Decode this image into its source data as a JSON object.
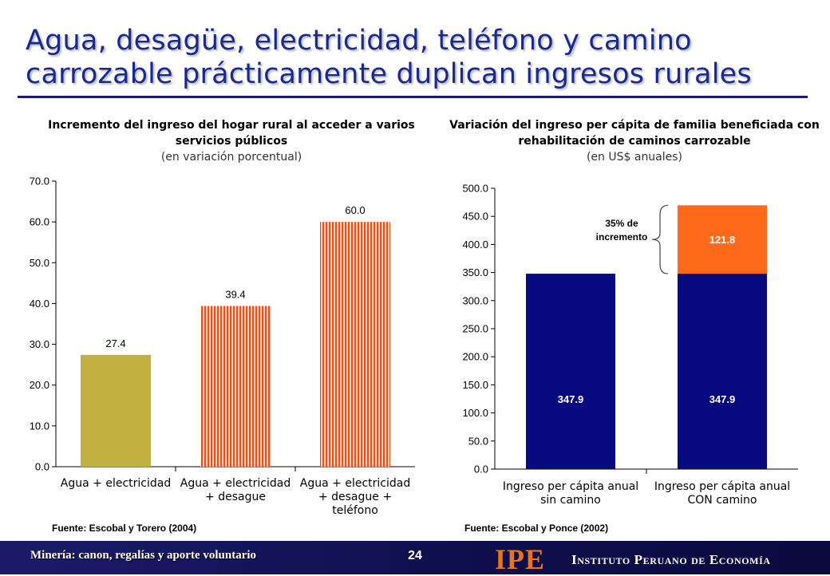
{
  "title": "Agua, desagüe, electricidad, teléfono y camino carrozable prácticamente duplican ingresos rurales",
  "colors": {
    "olive": "#c0b040",
    "orange_stripe_a": "#e8501a",
    "orange_stripe_b": "#ffffff",
    "navy": "#0a0a80",
    "orange_solid": "#ff6a1a"
  },
  "chart_data": [
    {
      "type": "bar",
      "title": "Incremento del ingreso del hogar rural al acceder a varios servicios públicos",
      "subtitle": "(en variación porcentual)",
      "categories": [
        [
          "Agua + electricidad"
        ],
        [
          "Agua + electricidad",
          "+ desague"
        ],
        [
          "Agua + electricidad",
          "+ desague +",
          "teléfono"
        ]
      ],
      "values": [
        27.4,
        39.4,
        60.0
      ],
      "value_labels": [
        "27.4",
        "39.4",
        "60.0"
      ],
      "ylim": [
        0,
        70
      ],
      "yticks": [
        "0.0",
        "10.0",
        "20.0",
        "30.0",
        "40.0",
        "50.0",
        "60.0",
        "70.0"
      ],
      "grid": false,
      "source": "Fuente: Escobal y Torero (2004)"
    },
    {
      "type": "bar",
      "stacked": true,
      "title": "Variación del ingreso per cápita de familia beneficiada con rehabilitación de caminos carrozable",
      "subtitle": "(en US$ anuales)",
      "categories": [
        [
          "Ingreso per cápita anual",
          "sin camino"
        ],
        [
          "Ingreso per cápita anual",
          "CON camino"
        ]
      ],
      "series": [
        {
          "values": [
            347.9,
            347.9
          ],
          "labels": [
            "347.9",
            "347.9"
          ]
        },
        {
          "values": [
            0,
            121.8
          ],
          "labels": [
            "",
            "121.8"
          ]
        }
      ],
      "ylim": [
        0,
        500
      ],
      "yticks": [
        "0.0",
        "50.0",
        "100.0",
        "150.0",
        "200.0",
        "250.0",
        "300.0",
        "350.0",
        "400.0",
        "450.0",
        "500.0"
      ],
      "annotation": [
        "35% de",
        "incremento"
      ],
      "grid": false,
      "source": "Fuente: Escobal y Ponce (2002)"
    }
  ],
  "footer": {
    "left_text": "Minería: canon, regalías y aporte voluntario",
    "page_number": "24",
    "logo": "IPE",
    "institute": "Instituto Peruano de Economía"
  }
}
